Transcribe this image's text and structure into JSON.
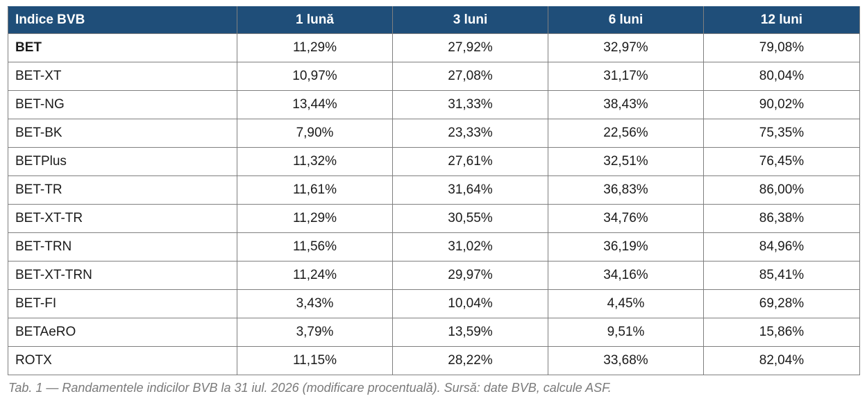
{
  "table": {
    "headers": [
      "Indice BVB",
      "1 lună",
      "3 luni",
      "6 luni",
      "12 luni"
    ],
    "rows": [
      {
        "index": "BET",
        "m1": "11,29%",
        "m3": "27,92%",
        "m6": "32,97%",
        "m12": "79,08%"
      },
      {
        "index": "BET-XT",
        "m1": "10,97%",
        "m3": "27,08%",
        "m6": "31,17%",
        "m12": "80,04%"
      },
      {
        "index": "BET-NG",
        "m1": "13,44%",
        "m3": "31,33%",
        "m6": "38,43%",
        "m12": "90,02%"
      },
      {
        "index": "BET-BK",
        "m1": "7,90%",
        "m3": "23,33%",
        "m6": "22,56%",
        "m12": "75,35%"
      },
      {
        "index": "BETPlus",
        "m1": "11,32%",
        "m3": "27,61%",
        "m6": "32,51%",
        "m12": "76,45%"
      },
      {
        "index": "BET-TR",
        "m1": "11,61%",
        "m3": "31,64%",
        "m6": "36,83%",
        "m12": "86,00%"
      },
      {
        "index": "BET-XT-TR",
        "m1": "11,29%",
        "m3": "30,55%",
        "m6": "34,76%",
        "m12": "86,38%"
      },
      {
        "index": "BET-TRN",
        "m1": "11,56%",
        "m3": "31,02%",
        "m6": "36,19%",
        "m12": "84,96%"
      },
      {
        "index": "BET-XT-TRN",
        "m1": "11,24%",
        "m3": "29,97%",
        "m6": "34,16%",
        "m12": "85,41%"
      },
      {
        "index": "BET-FI",
        "m1": "3,43%",
        "m3": "10,04%",
        "m6": "4,45%",
        "m12": "69,28%"
      },
      {
        "index": "BETAeRO",
        "m1": "3,79%",
        "m3": "13,59%",
        "m6": "9,51%",
        "m12": "15,86%"
      },
      {
        "index": "ROTX",
        "m1": "11,15%",
        "m3": "28,22%",
        "m6": "33,68%",
        "m12": "82,04%"
      }
    ]
  },
  "caption": "Tab. 1 — Randamentele indicilor BVB la 31 iul. 2026 (modificare procentuală). Sursă: date BVB, calcule ASF.",
  "colors": {
    "header_bg": "#1f4e79",
    "header_text": "#ffffff",
    "border": "#7f7f7f",
    "caption_text": "#7a7a7a"
  }
}
